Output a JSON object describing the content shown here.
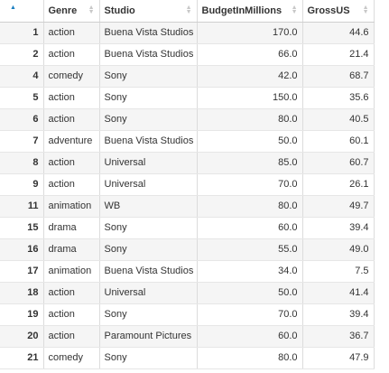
{
  "table": {
    "columns": [
      "Genre",
      "Studio",
      "BudgetInMillions",
      "GrossUS"
    ],
    "rows": [
      {
        "idx": "1",
        "genre": "action",
        "studio": "Buena Vista Studios",
        "budget": "170.0",
        "gross": "44.6"
      },
      {
        "idx": "2",
        "genre": "action",
        "studio": "Buena Vista Studios",
        "budget": "66.0",
        "gross": "21.4"
      },
      {
        "idx": "4",
        "genre": "comedy",
        "studio": "Sony",
        "budget": "42.0",
        "gross": "68.7"
      },
      {
        "idx": "5",
        "genre": "action",
        "studio": "Sony",
        "budget": "150.0",
        "gross": "35.6"
      },
      {
        "idx": "6",
        "genre": "action",
        "studio": "Sony",
        "budget": "80.0",
        "gross": "40.5"
      },
      {
        "idx": "7",
        "genre": "adventure",
        "studio": "Buena Vista Studios",
        "budget": "50.0",
        "gross": "60.1"
      },
      {
        "idx": "8",
        "genre": "action",
        "studio": "Universal",
        "budget": "85.0",
        "gross": "60.7"
      },
      {
        "idx": "9",
        "genre": "action",
        "studio": "Universal",
        "budget": "70.0",
        "gross": "26.1"
      },
      {
        "idx": "11",
        "genre": "animation",
        "studio": "WB",
        "budget": "80.0",
        "gross": "49.7"
      },
      {
        "idx": "15",
        "genre": "drama",
        "studio": "Sony",
        "budget": "60.0",
        "gross": "39.4"
      },
      {
        "idx": "16",
        "genre": "drama",
        "studio": "Sony",
        "budget": "55.0",
        "gross": "49.0"
      },
      {
        "idx": "17",
        "genre": "animation",
        "studio": "Buena Vista Studios",
        "budget": "34.0",
        "gross": "7.5"
      },
      {
        "idx": "18",
        "genre": "action",
        "studio": "Universal",
        "budget": "50.0",
        "gross": "41.4"
      },
      {
        "idx": "19",
        "genre": "action",
        "studio": "Sony",
        "budget": "70.0",
        "gross": "39.4"
      },
      {
        "idx": "20",
        "genre": "action",
        "studio": "Paramount Pictures",
        "budget": "60.0",
        "gross": "36.7"
      },
      {
        "idx": "21",
        "genre": "comedy",
        "studio": "Sony",
        "budget": "80.0",
        "gross": "47.9"
      }
    ]
  }
}
